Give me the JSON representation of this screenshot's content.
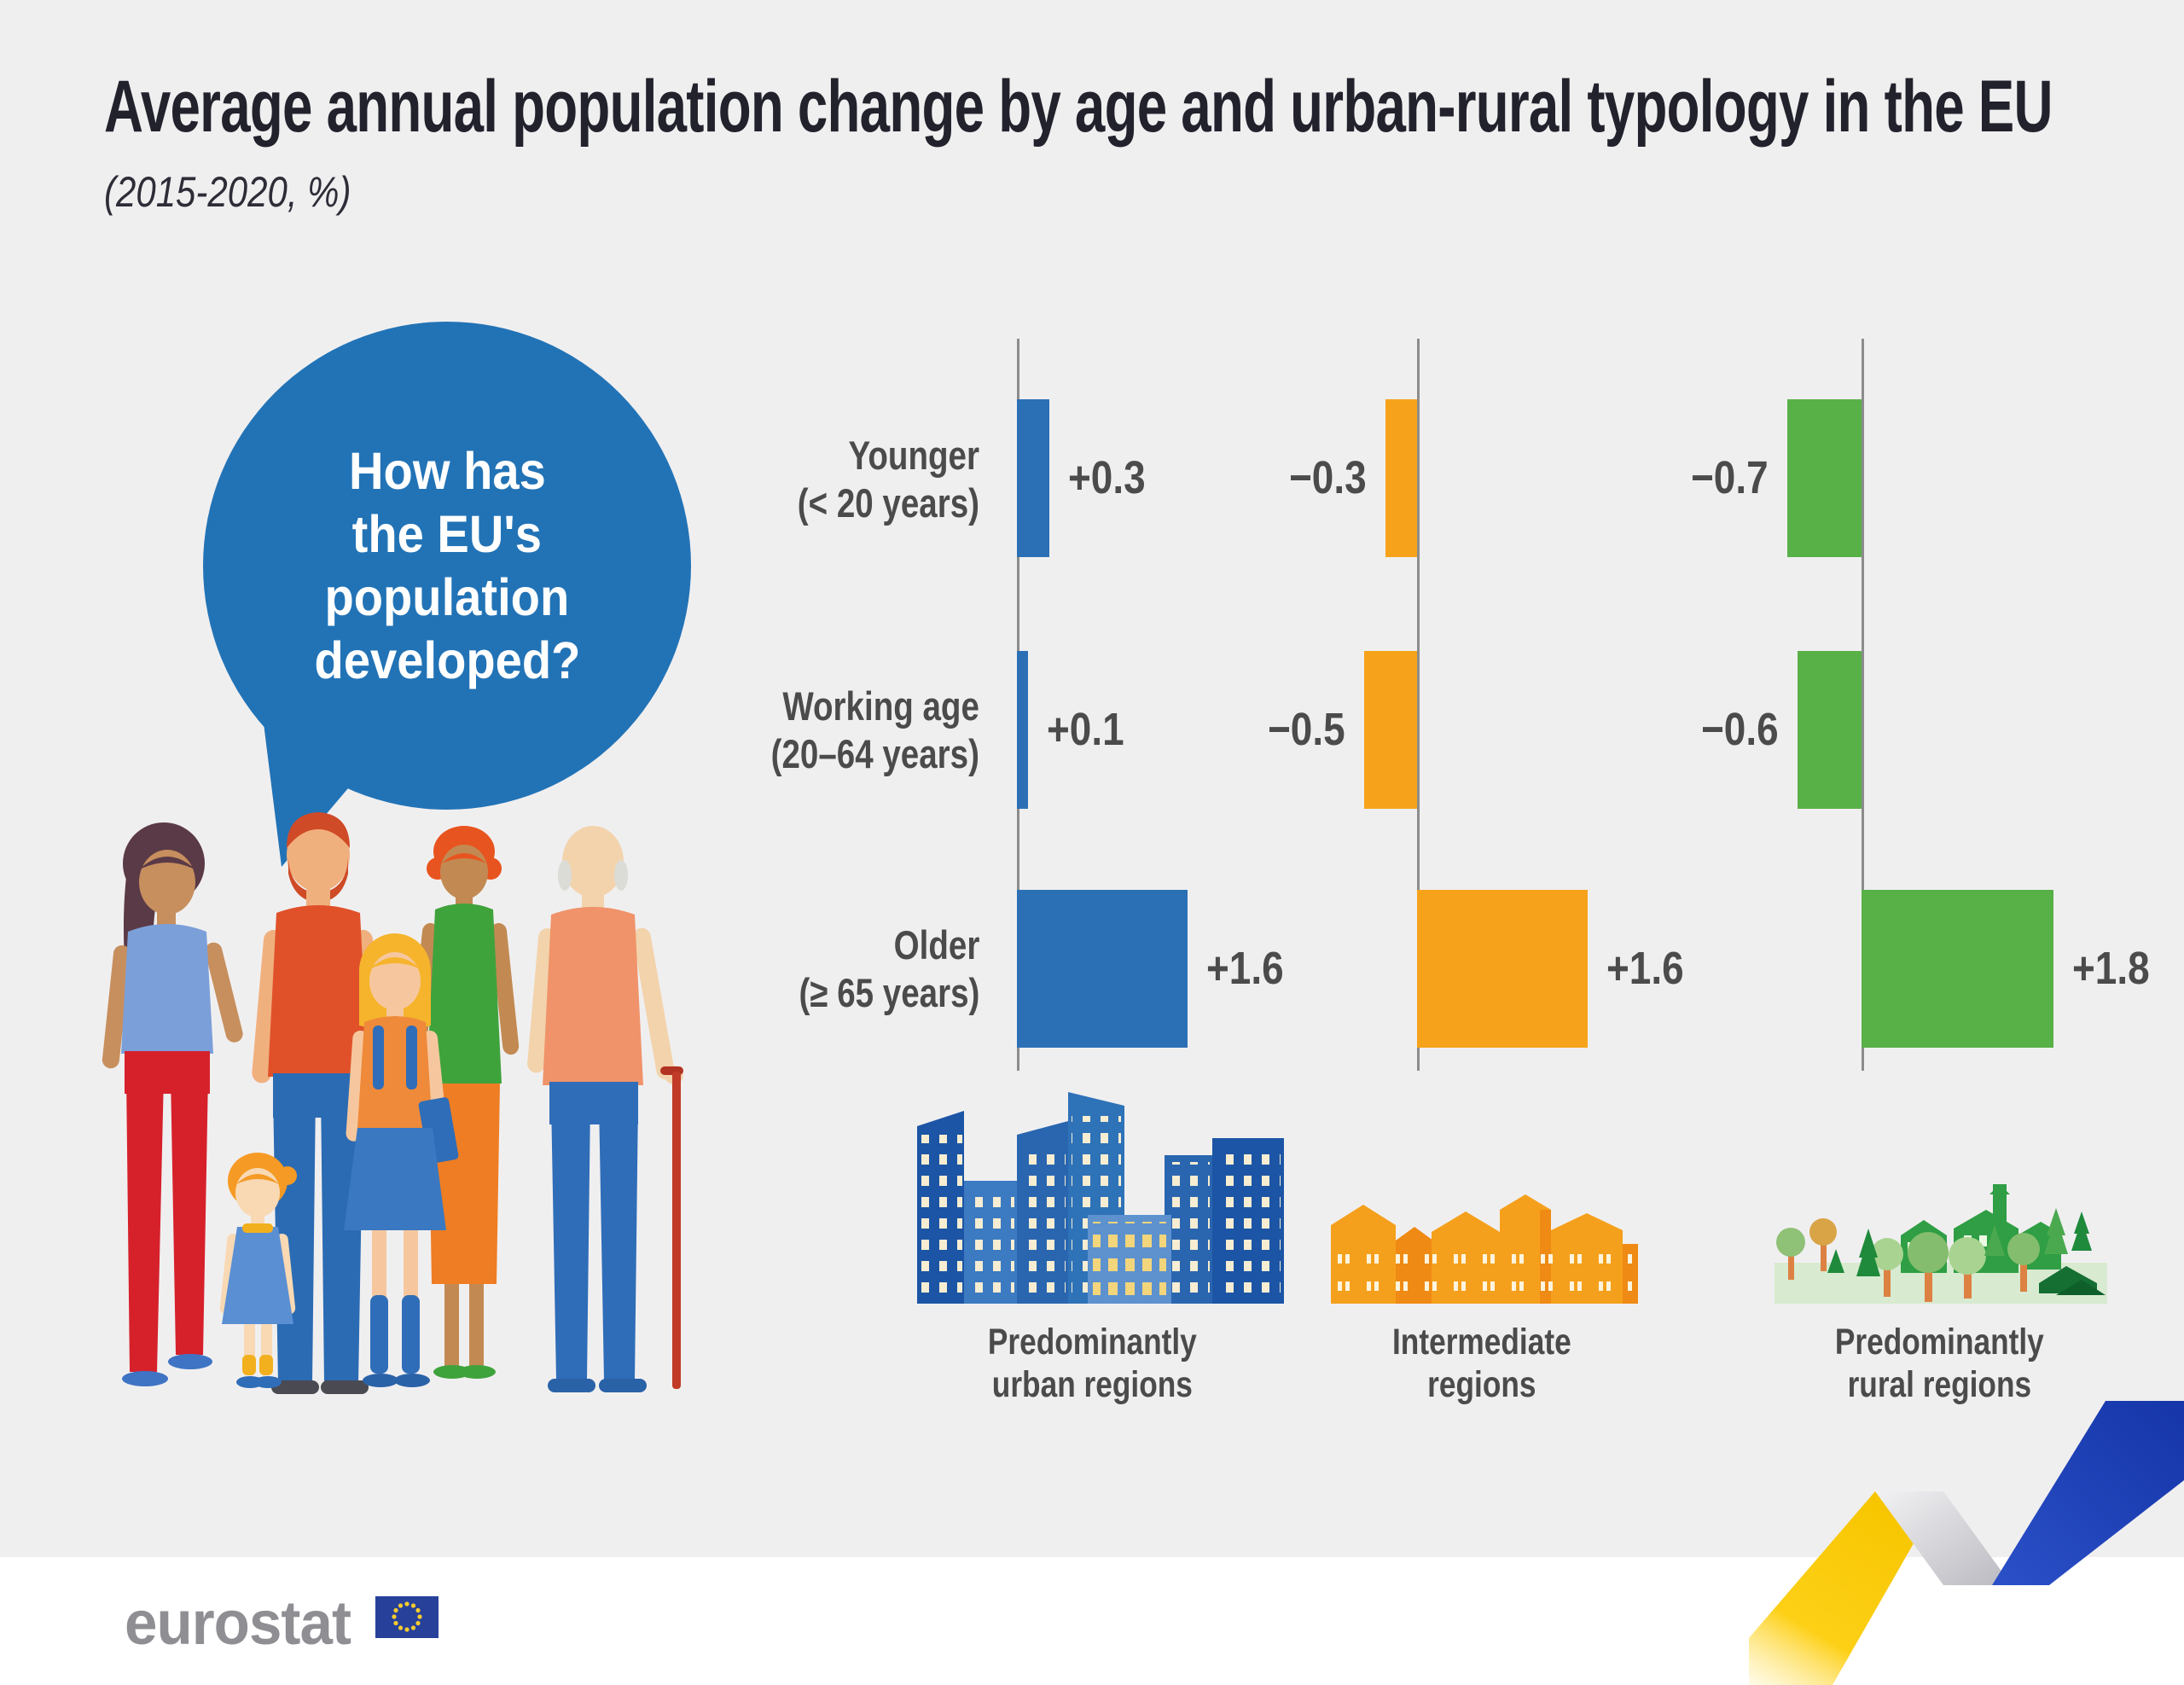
{
  "title": "Average annual population change by age and urban-rural typology in the EU",
  "subtitle": "(2015-2020, %)",
  "speech_bubble": {
    "lines": [
      "How has",
      "the EU's",
      "population",
      "developed?"
    ]
  },
  "chart_data": {
    "type": "bar",
    "orientation": "horizontal",
    "unit": "%",
    "title": "Average annual population change by age and urban-rural typology in the EU",
    "subtitle": "(2015-2020, %)",
    "grid": false,
    "legend_position": "bottom",
    "categories": [
      {
        "label": "Younger",
        "sublabel": "(< 20 years)"
      },
      {
        "label": "Working age",
        "sublabel": "(20–64 years)"
      },
      {
        "label": "Older",
        "sublabel": "(≥ 65 years)"
      }
    ],
    "series": [
      {
        "name": "Predominantly urban regions",
        "key": "urban",
        "color": "#2b70b5",
        "values": [
          0.3,
          0.1,
          1.6
        ],
        "value_labels": [
          "+0.3",
          "+0.1",
          "+1.6"
        ]
      },
      {
        "name": "Intermediate regions",
        "key": "intermediate",
        "color": "#f6a31b",
        "values": [
          -0.3,
          -0.5,
          1.6
        ],
        "value_labels": [
          "−0.3",
          "−0.5",
          "+1.6"
        ]
      },
      {
        "name": "Predominantly rural regions",
        "key": "rural",
        "color": "#58b147",
        "values": [
          -0.7,
          -0.6,
          1.8
        ],
        "value_labels": [
          "−0.7",
          "−0.6",
          "+1.8"
        ]
      }
    ]
  },
  "legend": {
    "items": [
      {
        "icon": "city-icon",
        "lines": [
          "Predominantly",
          "urban regions"
        ]
      },
      {
        "icon": "town-icon",
        "lines": [
          "Intermediate",
          "regions"
        ]
      },
      {
        "icon": "countryside-icon",
        "lines": [
          "Predominantly",
          "rural regions"
        ]
      }
    ]
  },
  "footer": {
    "brand": "eurostat"
  },
  "colors": {
    "background": "#f0eff0",
    "bubble_blue": "#2273b6",
    "bar_blue": "#2b70b5",
    "bar_orange": "#f6a31b",
    "bar_green": "#58b147",
    "text_dark": "#22222d",
    "text_gray": "#4b4b4b",
    "axis_gray": "#8c8c8c",
    "eu_flag_blue": "#27419a",
    "eu_star_yellow": "#f8cb2e"
  }
}
